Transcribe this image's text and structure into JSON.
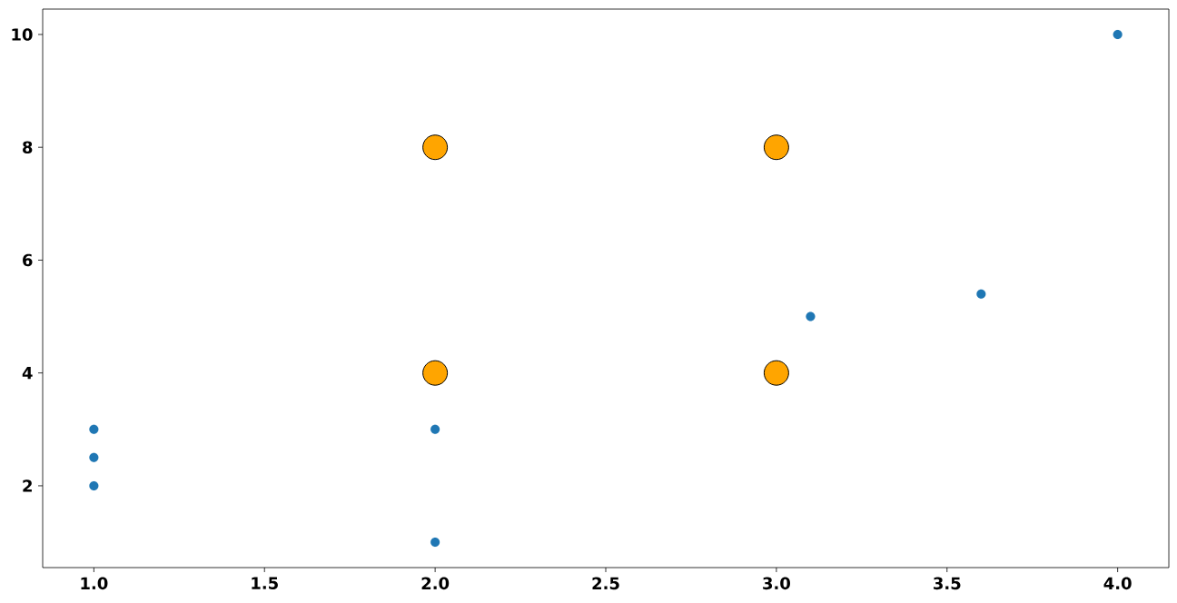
{
  "chart_data": {
    "type": "scatter",
    "series": [
      {
        "color": "#1f77b4",
        "x": [
          1,
          1,
          1,
          2,
          2,
          3.1,
          3.6,
          4
        ],
        "values": [
          3,
          2.5,
          2,
          3,
          1,
          5,
          5.4,
          10
        ]
      },
      {
        "color": "#ffa500",
        "x": [
          2,
          2,
          3,
          3
        ],
        "values": [
          4,
          8,
          4,
          8
        ]
      }
    ],
    "xlim": [
      0.85,
      4.15
    ],
    "ylim": [
      0.55,
      10.45
    ],
    "xticks": [
      {
        "value": 1,
        "label": "1.0"
      },
      {
        "value": 1.5,
        "label": "1.5"
      },
      {
        "value": 2,
        "label": "2.0"
      },
      {
        "value": 2.5,
        "label": "2.5"
      },
      {
        "value": 3,
        "label": "3.0"
      },
      {
        "value": 3.5,
        "label": "3.5"
      },
      {
        "value": 4,
        "label": "4.0"
      }
    ],
    "yticks": [
      2,
      4,
      6,
      8,
      10
    ],
    "marker": "circle"
  }
}
